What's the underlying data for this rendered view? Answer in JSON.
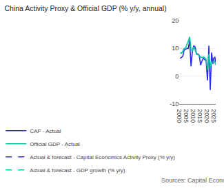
{
  "chart_data": {
    "type": "line",
    "title": "China Activity Proxy & Official GDP (% y/y, annual)",
    "annotations": [
      "Sources: Capital Economics, Refinitiv"
    ],
    "xlim": [
      1999.5,
      2026
    ],
    "ylim": [
      -10,
      20
    ],
    "xticks": [
      2000,
      2005,
      2010,
      2015,
      2020,
      2025
    ],
    "yticks": [
      -10,
      0,
      10,
      20
    ],
    "grid": "y",
    "legend": "bottom",
    "series": [
      {
        "name": "CAP - Actual",
        "color": "#2b2be8",
        "line_style": "solid",
        "x": [
          2000,
          2001,
          2002,
          2003,
          2004,
          2005,
          2006,
          2007,
          2008,
          2009,
          2010,
          2011,
          2012,
          2013,
          2014,
          2015,
          2016,
          2017,
          2018,
          2019,
          2020,
          2021,
          2022,
          2023,
          2024
        ],
        "values": [
          6.5,
          6.7,
          7.2,
          9.5,
          9.7,
          10.0,
          10.0,
          13.0,
          3.5,
          9.0,
          11.0,
          10.5,
          8.0,
          8.0,
          7.5,
          4.0,
          5.5,
          6.5,
          6.0,
          5.5,
          -1.5,
          11.0,
          -5.0,
          8.5,
          4.5
        ]
      },
      {
        "name": "Official GDP - Actual",
        "color": "#00c9a0",
        "line_style": "solid",
        "x": [
          2000,
          2001,
          2002,
          2003,
          2004,
          2005,
          2006,
          2007,
          2008,
          2009,
          2010,
          2011,
          2012,
          2013,
          2014,
          2015,
          2016,
          2017,
          2018,
          2019,
          2020,
          2021,
          2022,
          2023,
          2024
        ],
        "values": [
          8.5,
          8.3,
          9.0,
          10.0,
          10.1,
          11.3,
          12.7,
          14.2,
          9.6,
          9.2,
          10.6,
          9.5,
          7.9,
          7.8,
          7.3,
          6.9,
          6.7,
          6.9,
          6.7,
          6.0,
          2.3,
          8.1,
          3.0,
          5.2,
          5.0
        ]
      },
      {
        "name": "Actual & forecast - Capital Economics Activity Proxy (% y/y)",
        "color": "#2b2be8",
        "line_style": "dashed",
        "x": [
          2024,
          2025,
          2026
        ],
        "values": [
          4.5,
          8.0,
          5.0
        ]
      },
      {
        "name": "Actual & forecast - GDP growth (% y/y)",
        "color": "#00c9a0",
        "line_style": "dashed",
        "x": [
          2024,
          2025,
          2026
        ],
        "values": [
          5.0,
          5.5,
          4.0
        ]
      }
    ]
  }
}
